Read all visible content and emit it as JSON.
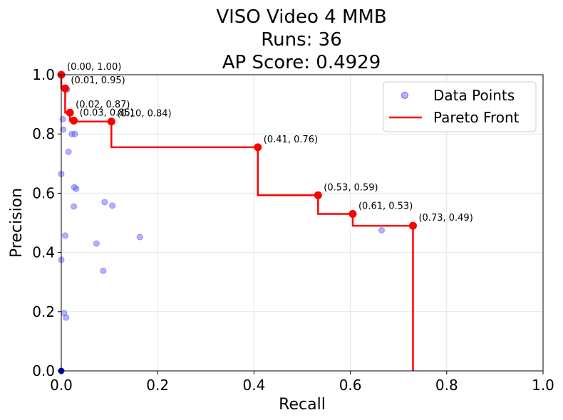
{
  "chart_data": {
    "type": "scatter",
    "title_lines": [
      "VISO Video 4 MMB",
      "Runs: 36",
      "AP Score: 0.4929"
    ],
    "xlabel": "Recall",
    "ylabel": "Precision",
    "xlim": [
      0,
      1
    ],
    "ylim": [
      0,
      1
    ],
    "xticks": [
      0.0,
      0.2,
      0.4,
      0.6,
      0.8,
      1.0
    ],
    "yticks": [
      0.0,
      0.2,
      0.4,
      0.6,
      0.8,
      1.0
    ],
    "xtick_labels": [
      "0.0",
      "0.2",
      "0.4",
      "0.6",
      "0.8",
      "1.0"
    ],
    "ytick_labels": [
      "0.0",
      "0.2",
      "0.4",
      "0.6",
      "0.8",
      "1.0"
    ],
    "grid": true,
    "legend_position": "top-right",
    "legend": {
      "data_points_label": "Data Points",
      "pareto_label": "Pareto Front"
    },
    "colors": {
      "data_points": "#6666ff",
      "pareto": "#ff0000",
      "origin_point": "#0000cc"
    },
    "scatter_points": [
      {
        "x": 0.0,
        "y": 0.0
      },
      {
        "x": 0.0,
        "y": 1.0
      },
      {
        "x": 0.0,
        "y": 0.665
      },
      {
        "x": 0.0,
        "y": 0.375
      },
      {
        "x": 0.003,
        "y": 0.85
      },
      {
        "x": 0.004,
        "y": 0.815
      },
      {
        "x": 0.006,
        "y": 0.195
      },
      {
        "x": 0.008,
        "y": 0.457
      },
      {
        "x": 0.01,
        "y": 0.18
      },
      {
        "x": 0.012,
        "y": 0.95
      },
      {
        "x": 0.015,
        "y": 0.74
      },
      {
        "x": 0.018,
        "y": 0.87
      },
      {
        "x": 0.022,
        "y": 0.8
      },
      {
        "x": 0.026,
        "y": 0.555
      },
      {
        "x": 0.027,
        "y": 0.62
      },
      {
        "x": 0.028,
        "y": 0.8
      },
      {
        "x": 0.031,
        "y": 0.615
      },
      {
        "x": 0.026,
        "y": 0.845
      },
      {
        "x": 0.073,
        "y": 0.43
      },
      {
        "x": 0.087,
        "y": 0.338
      },
      {
        "x": 0.09,
        "y": 0.57
      },
      {
        "x": 0.104,
        "y": 0.842
      },
      {
        "x": 0.106,
        "y": 0.558
      },
      {
        "x": 0.163,
        "y": 0.452
      },
      {
        "x": 0.408,
        "y": 0.755
      },
      {
        "x": 0.533,
        "y": 0.593
      },
      {
        "x": 0.605,
        "y": 0.53
      },
      {
        "x": 0.665,
        "y": 0.475
      },
      {
        "x": 0.73,
        "y": 0.49
      }
    ],
    "pareto_points": [
      {
        "x": 0.0,
        "y": 1.0,
        "label": "(0.00, 1.00)"
      },
      {
        "x": 0.008,
        "y": 0.954,
        "label": "(0.01, 0.95)"
      },
      {
        "x": 0.018,
        "y": 0.872,
        "label": "(0.02, 0.87)"
      },
      {
        "x": 0.026,
        "y": 0.845,
        "label": "(0.03, 0.85)"
      },
      {
        "x": 0.104,
        "y": 0.842,
        "label": "(0.10, 0.84)"
      },
      {
        "x": 0.408,
        "y": 0.755,
        "label": "(0.41, 0.76)"
      },
      {
        "x": 0.533,
        "y": 0.593,
        "label": "(0.53, 0.59)"
      },
      {
        "x": 0.605,
        "y": 0.53,
        "label": "(0.61, 0.53)"
      },
      {
        "x": 0.73,
        "y": 0.49,
        "label": "(0.73, 0.49)"
      }
    ]
  }
}
